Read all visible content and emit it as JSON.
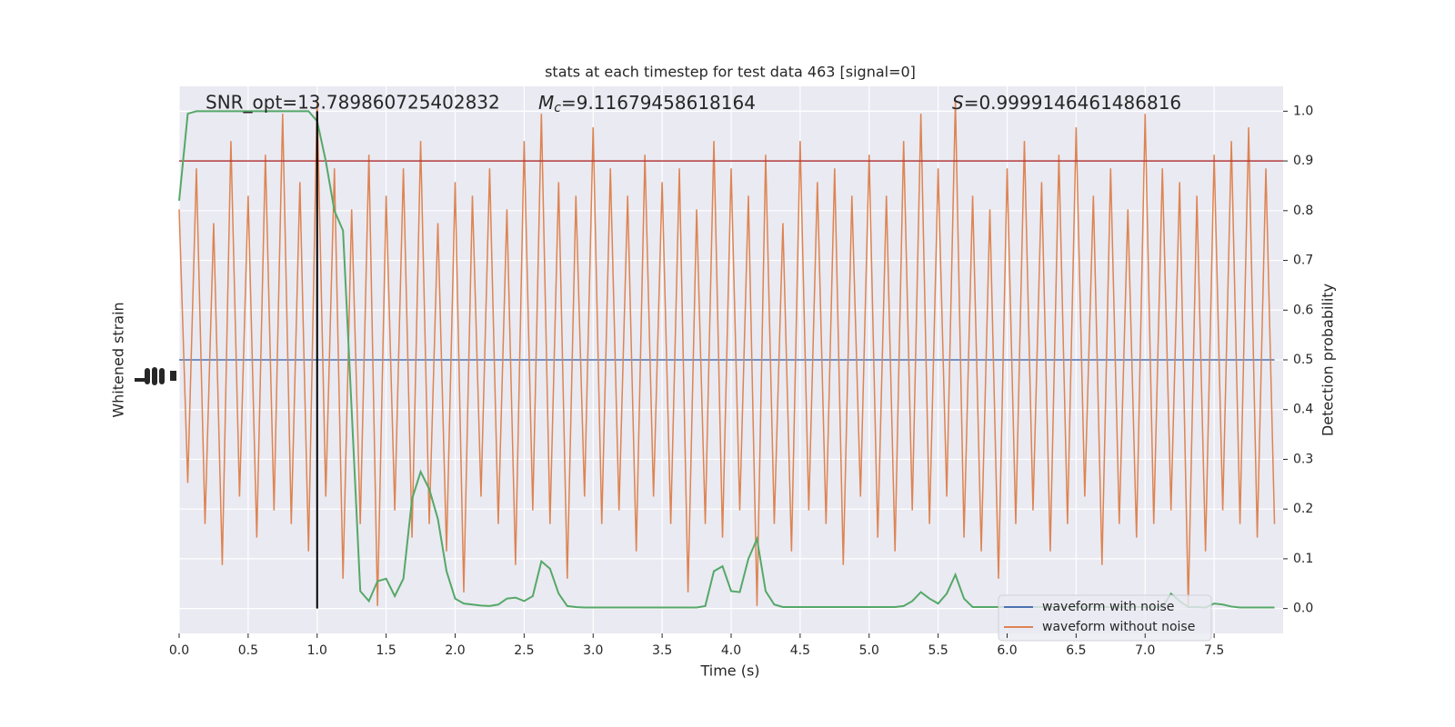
{
  "chart_data": {
    "type": "line",
    "title": "stats at each timestep for test data 463 [signal=0]",
    "xlabel": "Time (s)",
    "ylabel": "Whitened strain",
    "y2label": "Detection probability",
    "annotations": [
      {
        "text": "SNR_opt=13.789860725402832"
      },
      {
        "symbol": "M",
        "subscript": "c",
        "text": "=9.11679458618164"
      },
      {
        "symbol": "S",
        "text": "=0.9999146461486816"
      }
    ],
    "xlim": [
      0,
      8
    ],
    "xticks": [
      {
        "value": 0,
        "label": "0.0"
      },
      {
        "value": 0.5,
        "label": "0.5"
      },
      {
        "value": 1,
        "label": "1.0"
      },
      {
        "value": 1.5,
        "label": "1.5"
      },
      {
        "value": 2,
        "label": "2.0"
      },
      {
        "value": 2.5,
        "label": "2.5"
      },
      {
        "value": 3,
        "label": "3.0"
      },
      {
        "value": 3.5,
        "label": "3.5"
      },
      {
        "value": 4,
        "label": "4.0"
      },
      {
        "value": 4.5,
        "label": "4.5"
      },
      {
        "value": 5,
        "label": "5.0"
      },
      {
        "value": 5.5,
        "label": "5.5"
      },
      {
        "value": 6,
        "label": "6.0"
      },
      {
        "value": 6.5,
        "label": "6.5"
      },
      {
        "value": 7,
        "label": "7.0"
      },
      {
        "value": 7.5,
        "label": "7.5"
      }
    ],
    "ylim": [
      -1,
      1
    ],
    "y2lim": [
      -0.05,
      1.05
    ],
    "y2ticks": [
      {
        "value": 0,
        "label": "0.0"
      },
      {
        "value": 0.1,
        "label": "0.1"
      },
      {
        "value": 0.2,
        "label": "0.2"
      },
      {
        "value": 0.3,
        "label": "0.3"
      },
      {
        "value": 0.4,
        "label": "0.4"
      },
      {
        "value": 0.5,
        "label": "0.5"
      },
      {
        "value": 0.6,
        "label": "0.6"
      },
      {
        "value": 0.7,
        "label": "0.7"
      },
      {
        "value": 0.8,
        "label": "0.8"
      },
      {
        "value": 0.9,
        "label": "0.9"
      },
      {
        "value": 1,
        "label": "1.0"
      }
    ],
    "grid": true,
    "legend": "lower right",
    "x": [
      0,
      0.0625,
      0.125,
      0.1875,
      0.25,
      0.3125,
      0.375,
      0.4375,
      0.5,
      0.5625,
      0.625,
      0.6875,
      0.75,
      0.8125,
      0.875,
      0.9375,
      1,
      1.0625,
      1.125,
      1.1875,
      1.25,
      1.3125,
      1.375,
      1.4375,
      1.5,
      1.5625,
      1.625,
      1.6875,
      1.75,
      1.8125,
      1.875,
      1.9375,
      2,
      2.0625,
      2.125,
      2.1875,
      2.25,
      2.3125,
      2.375,
      2.4375,
      2.5,
      2.5625,
      2.625,
      2.6875,
      2.75,
      2.8125,
      2.875,
      2.9375,
      3,
      3.0625,
      3.125,
      3.1875,
      3.25,
      3.3125,
      3.375,
      3.4375,
      3.5,
      3.5625,
      3.625,
      3.6875,
      3.75,
      3.8125,
      3.875,
      3.9375,
      4,
      4.0625,
      4.125,
      4.1875,
      4.25,
      4.3125,
      4.375,
      4.4375,
      4.5,
      4.5625,
      4.625,
      4.6875,
      4.75,
      4.8125,
      4.875,
      4.9375,
      5,
      5.0625,
      5.125,
      5.1875,
      5.25,
      5.3125,
      5.375,
      5.4375,
      5.5,
      5.5625,
      5.625,
      5.6875,
      5.75,
      5.8125,
      5.875,
      5.9375,
      6,
      6.0625,
      6.125,
      6.1875,
      6.25,
      6.3125,
      6.375,
      6.4375,
      6.5,
      6.5625,
      6.625,
      6.6875,
      6.75,
      6.8125,
      6.875,
      6.9375,
      7,
      7.0625,
      7.125,
      7.1875,
      7.25,
      7.3125,
      7.375,
      7.4375,
      7.5,
      7.5625,
      7.625,
      7.6875,
      7.75,
      7.8125,
      7.875,
      7.9375
    ],
    "series": [
      {
        "name": "waveform with noise",
        "color": "#4c72b0",
        "values": [
          0,
          0,
          0,
          0,
          0,
          0,
          0,
          0,
          0,
          0,
          0,
          0,
          0,
          0,
          0,
          0,
          0,
          0,
          0,
          0,
          0,
          0,
          0,
          0,
          0,
          0,
          0,
          0,
          0,
          0,
          0,
          0,
          0,
          0,
          0,
          0,
          0,
          0,
          0,
          0,
          0,
          0,
          0,
          0,
          0,
          0,
          0,
          0,
          0,
          0,
          0,
          0,
          0,
          0,
          0,
          0,
          0,
          0,
          0,
          0,
          0,
          0,
          0,
          0,
          0,
          0,
          0,
          0,
          0,
          0,
          0,
          0,
          0,
          0,
          0,
          0,
          0,
          0,
          0,
          0,
          0,
          0,
          0,
          0,
          0,
          0,
          0,
          0,
          0,
          0,
          0,
          0,
          0,
          0,
          0,
          0,
          0,
          0,
          0,
          0,
          0,
          0,
          0,
          0,
          0,
          0,
          0,
          0,
          0,
          0,
          0,
          0,
          0,
          0,
          0,
          0,
          0,
          0,
          0,
          0,
          0,
          0,
          0,
          0,
          0,
          0,
          0,
          0
        ]
      },
      {
        "name": "waveform without noise",
        "color": "#dd8452",
        "values": [
          0.55,
          -0.45,
          0.7,
          -0.6,
          0.5,
          -0.75,
          0.8,
          -0.5,
          0.6,
          -0.65,
          0.75,
          -0.55,
          0.9,
          -0.6,
          0.65,
          -0.7,
          0.95,
          -0.5,
          0.7,
          -0.8,
          0.55,
          -0.6,
          0.75,
          -0.9,
          0.6,
          -0.55,
          0.7,
          -0.65,
          0.8,
          -0.6,
          0.5,
          -0.7,
          0.65,
          -0.85,
          0.6,
          -0.5,
          0.7,
          -0.6,
          0.55,
          -0.75,
          0.8,
          -0.55,
          0.9,
          -0.6,
          0.65,
          -0.8,
          0.6,
          -0.5,
          0.85,
          -0.6,
          0.7,
          -0.55,
          0.6,
          -0.7,
          0.75,
          -0.5,
          0.65,
          -0.6,
          0.7,
          -0.85,
          0.55,
          -0.6,
          0.8,
          -0.65,
          0.7,
          -0.55,
          0.6,
          -0.9,
          0.75,
          -0.6,
          0.5,
          -0.7,
          0.8,
          -0.55,
          0.65,
          -0.6,
          0.7,
          -0.75,
          0.6,
          -0.5,
          0.75,
          -0.65,
          0.6,
          -0.7,
          0.8,
          -0.55,
          0.9,
          -0.6,
          0.7,
          -0.5,
          0.95,
          -0.65,
          0.6,
          -0.7,
          0.55,
          -0.8,
          0.7,
          -0.6,
          0.8,
          -0.55,
          0.65,
          -0.7,
          0.75,
          -0.6,
          0.85,
          -0.5,
          0.6,
          -0.75,
          0.7,
          -0.6,
          0.55,
          -0.65,
          0.9,
          -0.6,
          0.7,
          -0.55,
          0.65,
          -0.9,
          0.6,
          -0.7,
          0.75,
          -0.55,
          0.8,
          -0.6,
          0.85,
          -0.65,
          0.7,
          -0.6
        ]
      }
    ],
    "probability": {
      "color": "#55a868",
      "axis": "y2",
      "values": [
        0.82,
        0.995,
        1,
        1,
        1,
        1,
        1,
        1,
        1,
        1,
        1,
        1,
        1,
        1,
        1,
        1,
        0.98,
        0.9,
        0.8,
        0.76,
        0.4,
        0.035,
        0.015,
        0.055,
        0.06,
        0.025,
        0.06,
        0.22,
        0.275,
        0.24,
        0.18,
        0.075,
        0.02,
        0.01,
        0.008,
        0.006,
        0.005,
        0.008,
        0.02,
        0.022,
        0.015,
        0.025,
        0.095,
        0.08,
        0.03,
        0.005,
        0.003,
        0.002,
        0.002,
        0.002,
        0.002,
        0.002,
        0.002,
        0.002,
        0.002,
        0.002,
        0.002,
        0.002,
        0.002,
        0.002,
        0.002,
        0.005,
        0.075,
        0.085,
        0.035,
        0.033,
        0.1,
        0.14,
        0.035,
        0.008,
        0.003,
        0.003,
        0.003,
        0.003,
        0.003,
        0.003,
        0.003,
        0.003,
        0.003,
        0.003,
        0.003,
        0.003,
        0.003,
        0.003,
        0.005,
        0.015,
        0.033,
        0.02,
        0.01,
        0.03,
        0.068,
        0.02,
        0.003,
        0.003,
        0.003,
        0.003,
        0.003,
        0.003,
        0.003,
        0.003,
        0.003,
        0.003,
        0.003,
        0.003,
        0.003,
        0.003,
        0.003,
        0.003,
        0.003,
        0.003,
        0.003,
        0.003,
        0.003,
        0.003,
        0.003,
        0.03,
        0.015,
        0.003,
        0.003,
        0.002,
        0.01,
        0.008,
        0.004,
        0.002,
        0.002,
        0.002,
        0.002,
        0.002
      ]
    },
    "hline": {
      "y": 0.9,
      "axis": "y2",
      "color": "#b23a3a"
    },
    "vline": {
      "x": 1,
      "y2range": [
        0,
        1
      ],
      "color": "#000000"
    }
  }
}
